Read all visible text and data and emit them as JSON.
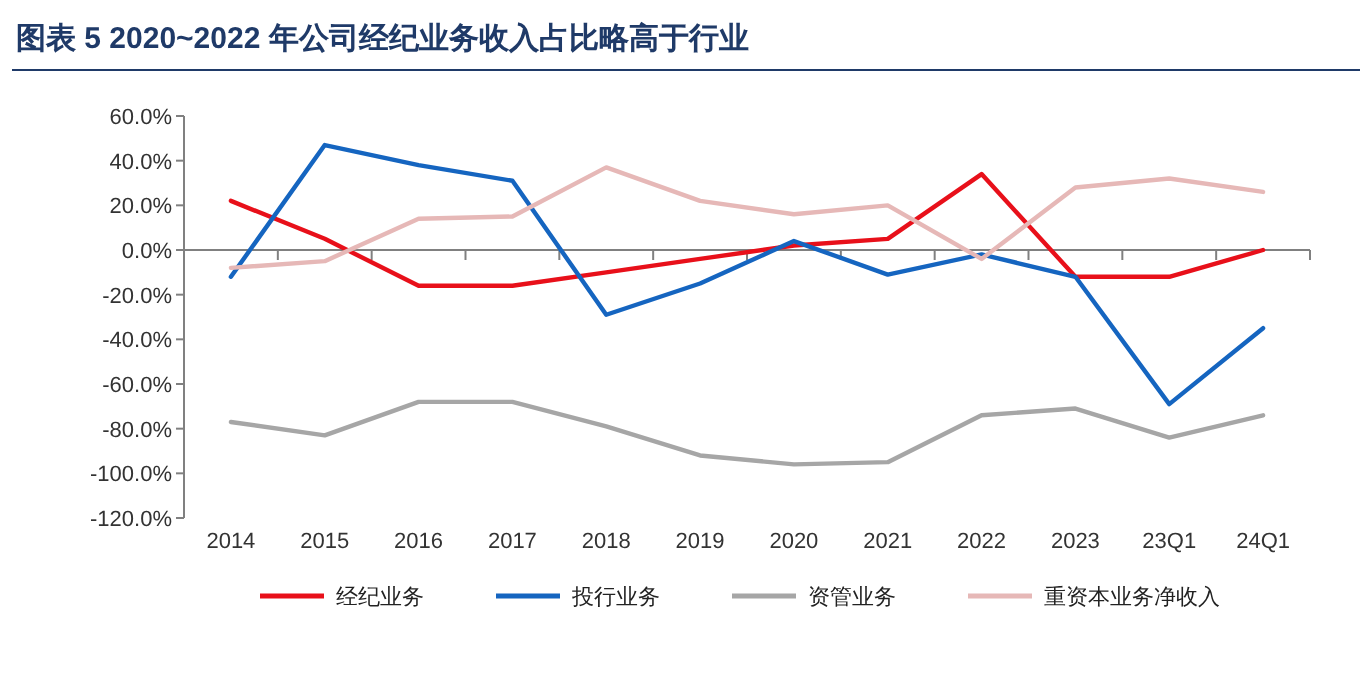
{
  "chart_data": {
    "type": "line",
    "title": "图表 5   2020~2022 年公司经纪业务收入占比略高于行业",
    "categories": [
      "2014",
      "2015",
      "2016",
      "2017",
      "2018",
      "2019",
      "2020",
      "2021",
      "2022",
      "2023",
      "23Q1",
      "24Q1"
    ],
    "series": [
      {
        "name": "经纪业务",
        "color": "#e8101a",
        "values": [
          22,
          5,
          -16,
          -16,
          -10,
          -4,
          2,
          5,
          34,
          -12,
          -12,
          0
        ]
      },
      {
        "name": "投行业务",
        "color": "#1565c0",
        "values": [
          -12,
          47,
          38,
          31,
          -29,
          -15,
          4,
          -11,
          -2,
          -12,
          -69,
          -35
        ]
      },
      {
        "name": "资管业务",
        "color": "#a6a6a6",
        "values": [
          -77,
          -83,
          -68,
          -68,
          -79,
          -92,
          -96,
          -95,
          -74,
          -71,
          -84,
          -74
        ]
      },
      {
        "name": "重资本业务净收入",
        "color": "#e6b8b7",
        "values": [
          -8,
          -5,
          14,
          15,
          37,
          22,
          16,
          20,
          -4,
          28,
          32,
          26
        ]
      }
    ],
    "ylim": [
      -120,
      60
    ],
    "yticks": [
      {
        "value": 60,
        "label": "60.0%"
      },
      {
        "value": 40,
        "label": "40.0%"
      },
      {
        "value": 20,
        "label": "20.0%"
      },
      {
        "value": 0,
        "label": "0.0%"
      },
      {
        "value": -20,
        "label": "-20.0%"
      },
      {
        "value": -40,
        "label": "-40.0%"
      },
      {
        "value": -60,
        "label": "-60.0%"
      },
      {
        "value": -80,
        "label": "-80.0%"
      },
      {
        "value": -100,
        "label": "-100.0%"
      },
      {
        "value": -120,
        "label": "-120.0%"
      }
    ],
    "legend": "bottom",
    "marker": "none",
    "line_style": "solid"
  }
}
